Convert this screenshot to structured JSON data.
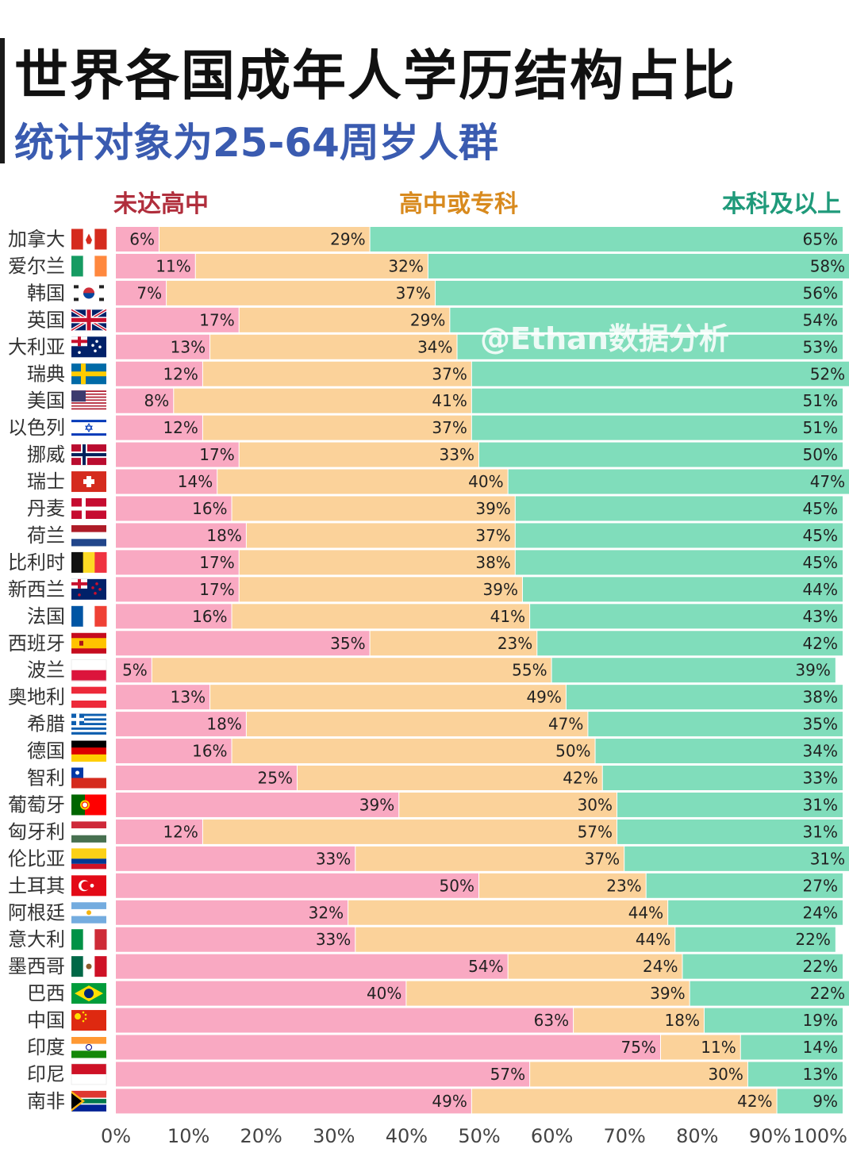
{
  "title": "世界各国成年人学历结构占比",
  "subtitle": "统计对象为25-64周岁人群",
  "watermark": "@Ethan数据分析",
  "colors": {
    "below_high_school": "#f9a9c2",
    "high_school_or_college": "#fbd29a",
    "bachelor_or_above": "#80ddbb",
    "legend_below": "#b02e3c",
    "legend_mid": "#d88a1e",
    "legend_high": "#1f9a7a"
  },
  "chart_data": {
    "type": "bar",
    "orientation": "horizontal",
    "stacked": true,
    "xlim": [
      0,
      100
    ],
    "x_ticks": [
      "0%",
      "10%",
      "20%",
      "30%",
      "40%",
      "50%",
      "60%",
      "70%",
      "80%",
      "90%",
      "100%"
    ],
    "categories": [
      "加拿大",
      "爱尔兰",
      "韩国",
      "英国",
      "大利亚",
      "瑞典",
      "美国",
      "以色列",
      "挪威",
      "瑞士",
      "丹麦",
      "荷兰",
      "比利时",
      "新西兰",
      "法国",
      "西班牙",
      "波兰",
      "奥地利",
      "希腊",
      "德国",
      "智利",
      "葡萄牙",
      "匈牙利",
      "伦比亚",
      "土耳其",
      "阿根廷",
      "意大利",
      "墨西哥",
      "巴西",
      "中国",
      "印度",
      "印尼",
      "南非"
    ],
    "flags": [
      "flag-canada",
      "flag-ireland",
      "flag-korea",
      "flag-uk",
      "flag-australia",
      "flag-sweden",
      "flag-usa",
      "flag-israel",
      "flag-norway",
      "flag-switzerland",
      "flag-denmark",
      "flag-netherlands",
      "flag-belgium",
      "flag-new-zealand",
      "flag-france",
      "flag-spain",
      "flag-poland",
      "flag-austria",
      "flag-greece",
      "flag-germany",
      "flag-chile",
      "flag-portugal",
      "flag-hungary",
      "flag-colombia",
      "flag-turkey",
      "flag-argentina",
      "flag-italy",
      "flag-mexico",
      "flag-brazil",
      "flag-china",
      "flag-india",
      "flag-indonesia",
      "flag-south-africa"
    ],
    "series": [
      {
        "name": "未达高中",
        "values": [
          6,
          11,
          7,
          17,
          13,
          12,
          8,
          12,
          17,
          14,
          16,
          18,
          17,
          17,
          16,
          35,
          5,
          13,
          18,
          16,
          25,
          39,
          12,
          33,
          50,
          32,
          33,
          54,
          40,
          63,
          75,
          57,
          49
        ]
      },
      {
        "name": "高中或专科",
        "values": [
          29,
          32,
          37,
          29,
          34,
          37,
          41,
          37,
          33,
          40,
          39,
          37,
          38,
          39,
          41,
          23,
          55,
          49,
          47,
          50,
          42,
          30,
          57,
          37,
          23,
          44,
          44,
          24,
          39,
          18,
          11,
          30,
          42
        ]
      },
      {
        "name": "本科及以上",
        "values": [
          65,
          58,
          56,
          54,
          53,
          52,
          51,
          51,
          50,
          47,
          45,
          45,
          45,
          44,
          43,
          42,
          39,
          38,
          35,
          34,
          33,
          31,
          31,
          31,
          27,
          24,
          22,
          22,
          22,
          19,
          14,
          13,
          9
        ]
      }
    ]
  }
}
